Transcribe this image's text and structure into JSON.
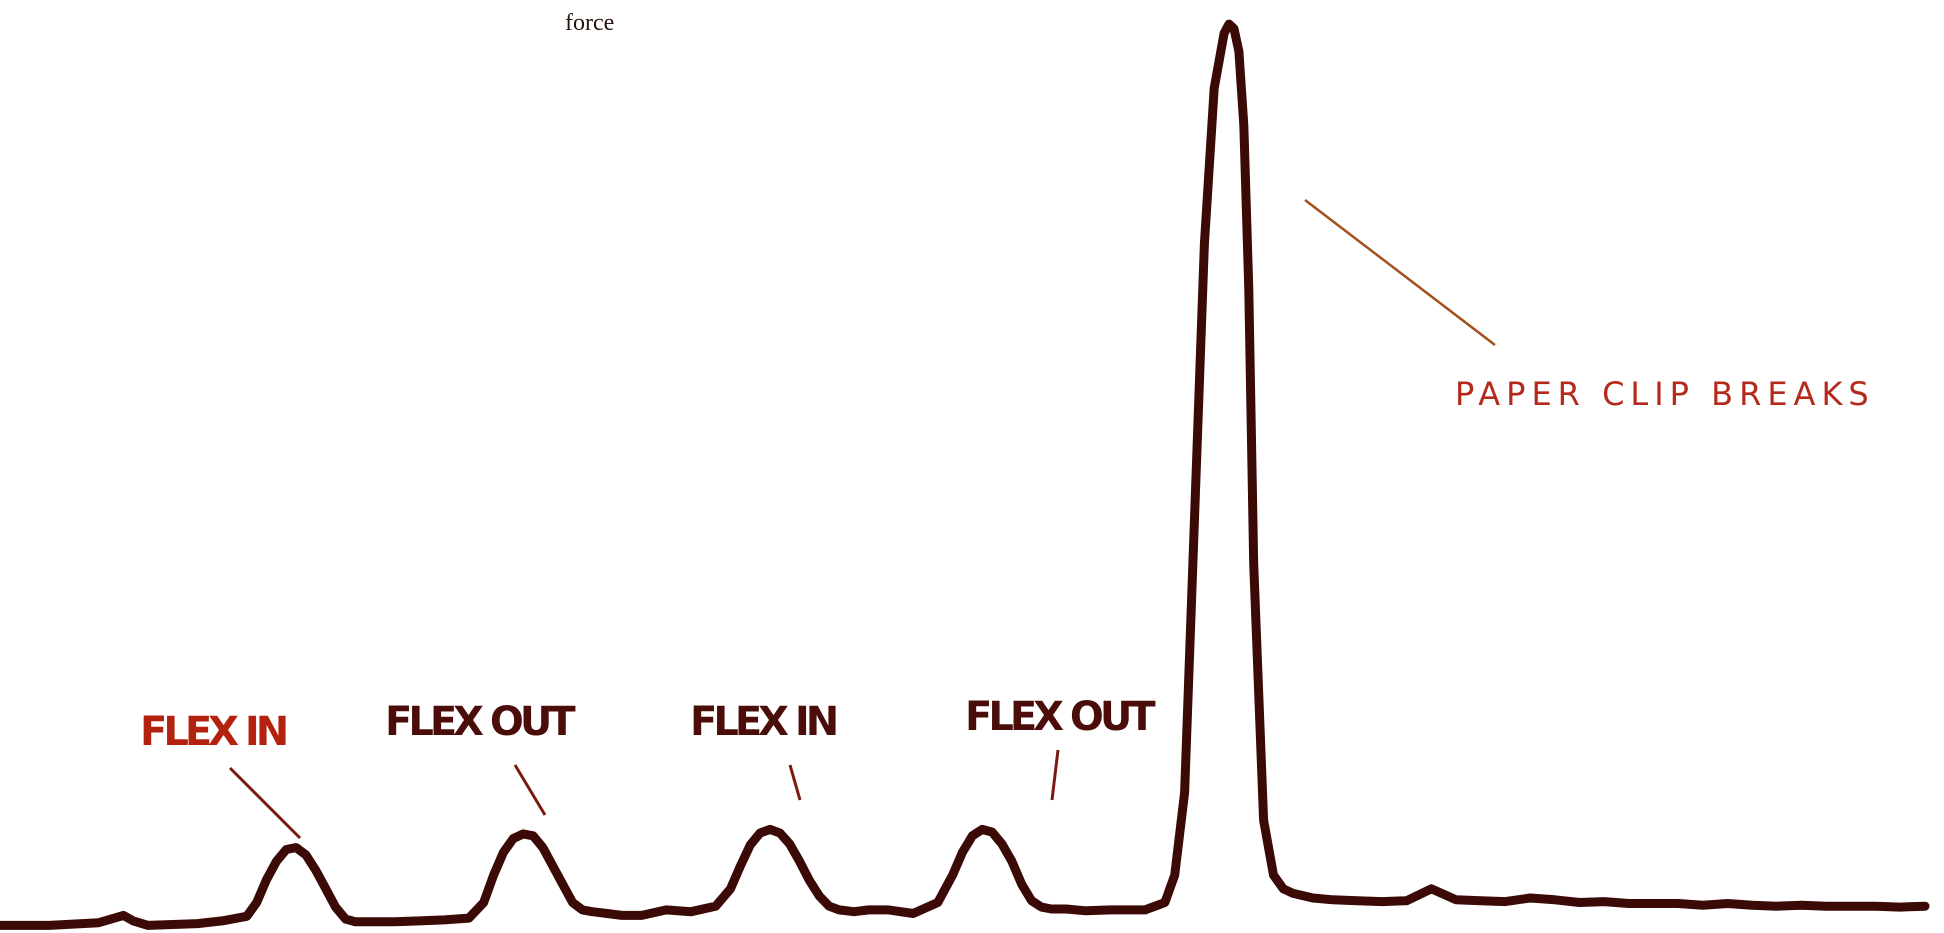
{
  "chart_data": {
    "type": "line",
    "title": "",
    "xlabel": "",
    "ylabel": "force",
    "grid": false,
    "line_color": "#3b0a06",
    "series": [
      {
        "x": [
          0,
          10,
          20,
          25,
          27,
          30,
          35,
          40,
          45,
          50,
          52,
          54,
          56,
          58,
          60,
          62,
          64,
          66,
          68,
          70,
          72,
          75,
          80,
          85,
          90,
          95,
          98,
          100,
          102,
          104,
          106,
          108,
          110,
          112,
          114,
          116,
          118,
          120,
          123,
          126,
          130,
          135,
          140,
          145,
          148,
          150,
          152,
          154,
          156,
          158,
          160,
          162,
          164,
          166,
          168,
          170,
          173,
          176,
          180,
          185,
          190,
          193,
          195,
          197,
          199,
          201,
          203,
          205,
          207,
          209,
          211,
          213,
          216,
          220,
          225,
          232,
          236,
          238,
          240,
          242,
          244,
          246,
          248,
          249,
          250,
          251,
          252,
          253,
          254,
          256,
          258,
          260,
          262,
          266,
          270,
          275,
          280,
          285,
          290,
          295,
          300,
          305,
          310,
          315,
          320,
          325,
          330,
          335,
          340,
          345,
          350,
          355,
          360,
          365,
          370,
          375,
          380,
          385,
          390
        ],
        "y": [
          0.5,
          0.5,
          0.8,
          1.6,
          1.0,
          0.5,
          0.6,
          0.7,
          1.0,
          1.5,
          3.0,
          5.5,
          7.5,
          8.8,
          9.0,
          8.2,
          6.5,
          4.5,
          2.5,
          1.2,
          0.9,
          0.9,
          0.9,
          1.0,
          1.1,
          1.3,
          3.0,
          6.0,
          8.5,
          10.0,
          10.5,
          10.3,
          9.0,
          7.0,
          5.0,
          3.0,
          2.2,
          2.0,
          1.8,
          1.6,
          1.6,
          2.2,
          2.0,
          2.6,
          4.5,
          7.0,
          9.3,
          10.6,
          11.0,
          10.6,
          9.4,
          7.5,
          5.4,
          3.7,
          2.6,
          2.2,
          2.0,
          2.2,
          2.2,
          1.8,
          3.0,
          6.0,
          8.5,
          10.3,
          11.0,
          10.7,
          9.4,
          7.5,
          5.0,
          3.2,
          2.5,
          2.3,
          2.3,
          2.1,
          2.2,
          2.2,
          3.0,
          6.0,
          15.0,
          45.0,
          75.0,
          92.0,
          98.0,
          99.0,
          98.5,
          96.0,
          88.0,
          70.0,
          40.0,
          12.0,
          6.0,
          4.5,
          4.0,
          3.5,
          3.3,
          3.2,
          3.1,
          3.2,
          4.5,
          3.3,
          3.2,
          3.1,
          3.5,
          3.3,
          3.0,
          3.1,
          2.9,
          2.9,
          2.9,
          2.7,
          2.9,
          2.7,
          2.6,
          2.7,
          2.6,
          2.6,
          2.6,
          2.5,
          2.6
        ]
      }
    ],
    "xlim": [
      0,
      390
    ],
    "ylim": [
      0,
      100
    ],
    "annotations": [
      {
        "text": "FLEX IN",
        "target_x": 60,
        "target_y": 9.0
      },
      {
        "text": "FLEX OUT",
        "target_x": 105,
        "target_y": 10.5
      },
      {
        "text": "FLEX IN",
        "target_x": 157,
        "target_y": 11.0
      },
      {
        "text": "FLEX OUT",
        "target_x": 208,
        "target_y": 11.0
      },
      {
        "text": "PAPER CLIP BREAKS",
        "target_x": 259,
        "target_y": 57
      }
    ]
  }
}
